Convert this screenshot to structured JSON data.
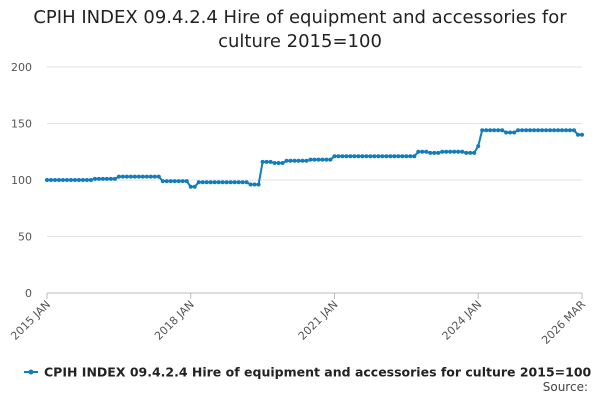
{
  "chart_data": {
    "type": "line",
    "title": "CPIH INDEX 09.4.2.4 Hire of equipment and accessories for culture 2015=100",
    "xlabel": "",
    "ylabel": "",
    "x_tick_labels": [
      "2015 JAN",
      "2018 JAN",
      "2021 JAN",
      "2024 JAN",
      "2026 MAR"
    ],
    "y_tick_labels": [
      "0",
      "50",
      "100",
      "150",
      "200"
    ],
    "ylim": [
      0,
      200
    ],
    "grid": "horizontal",
    "legend_position": "bottom",
    "series": [
      {
        "name": "CPIH INDEX 09.4.2.4 Hire of equipment and accessories for culture 2015=100",
        "color": "#0f7dbe",
        "segments": [
          {
            "from": "2015-01",
            "to": "2015-12",
            "value": 100
          },
          {
            "from": "2016-01",
            "to": "2016-06",
            "value": 101
          },
          {
            "from": "2016-07",
            "to": "2017-05",
            "value": 103
          },
          {
            "from": "2017-06",
            "to": "2017-12",
            "value": 99
          },
          {
            "from": "2018-01",
            "to": "2018-02",
            "value": 94
          },
          {
            "from": "2018-03",
            "to": "2019-03",
            "value": 98
          },
          {
            "from": "2019-04",
            "to": "2019-06",
            "value": 96
          },
          {
            "from": "2019-07",
            "to": "2019-09",
            "value": 116
          },
          {
            "from": "2019-10",
            "to": "2019-12",
            "value": 115
          },
          {
            "from": "2020-01",
            "to": "2020-06",
            "value": 117
          },
          {
            "from": "2020-07",
            "to": "2020-12",
            "value": 118
          },
          {
            "from": "2021-01",
            "to": "2022-09",
            "value": 121
          },
          {
            "from": "2022-10",
            "to": "2022-12",
            "value": 125
          },
          {
            "from": "2023-01",
            "to": "2023-03",
            "value": 124
          },
          {
            "from": "2023-04",
            "to": "2023-09",
            "value": 125
          },
          {
            "from": "2023-10",
            "to": "2023-12",
            "value": 124
          },
          {
            "from": "2024-01",
            "to": "2024-01",
            "value": 130
          },
          {
            "from": "2024-02",
            "to": "2024-07",
            "value": 144
          },
          {
            "from": "2024-08",
            "to": "2024-10",
            "value": 142
          },
          {
            "from": "2024-11",
            "to": "2026-01",
            "value": 144
          },
          {
            "from": "2026-02",
            "to": "2026-03",
            "value": 140
          }
        ]
      }
    ]
  },
  "footer": {
    "source_label": "Source:"
  }
}
